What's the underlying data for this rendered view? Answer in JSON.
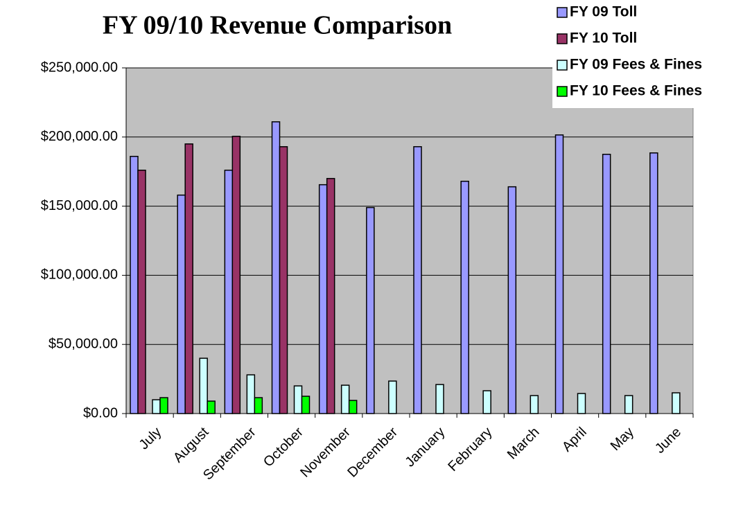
{
  "chart_data": {
    "type": "bar",
    "title": "FY 09/10 Revenue Comparison",
    "categories": [
      "July",
      "August",
      "September",
      "October",
      "November",
      "December",
      "January",
      "February",
      "March",
      "April",
      "May",
      "June"
    ],
    "series": [
      {
        "name": "FY 09 Toll",
        "color": "#9999ff",
        "values": [
          186000,
          158000,
          176000,
          211000,
          165500,
          149000,
          193000,
          168000,
          164000,
          201500,
          187500,
          188500
        ]
      },
      {
        "name": "FY 10 Toll",
        "color": "#993366",
        "values": [
          176000,
          195000,
          200500,
          193000,
          170000,
          null,
          null,
          null,
          null,
          null,
          null,
          null
        ]
      },
      {
        "name": "FY 09 Fees & Fines",
        "color": "#ccffff",
        "values": [
          10000,
          40000,
          28000,
          20000,
          20500,
          23500,
          21000,
          16500,
          13000,
          14500,
          13000,
          15000
        ]
      },
      {
        "name": "FY 10 Fees & Fines",
        "color": "#00ff00",
        "values": [
          11500,
          9000,
          11500,
          12500,
          9500,
          null,
          null,
          null,
          null,
          null,
          null,
          null
        ]
      }
    ],
    "ylim": [
      0,
      250000
    ],
    "yticks": [
      {
        "value": 0,
        "label": "$0.00"
      },
      {
        "value": 50000,
        "label": "$50,000.00"
      },
      {
        "value": 100000,
        "label": "$100,000.00"
      },
      {
        "value": 150000,
        "label": "$150,000.00"
      },
      {
        "value": 200000,
        "label": "$200,000.00"
      },
      {
        "value": 250000,
        "label": "$250,000.00"
      }
    ],
    "grid": true,
    "legend": "top-right",
    "plot_background": "#c0c0c0"
  }
}
